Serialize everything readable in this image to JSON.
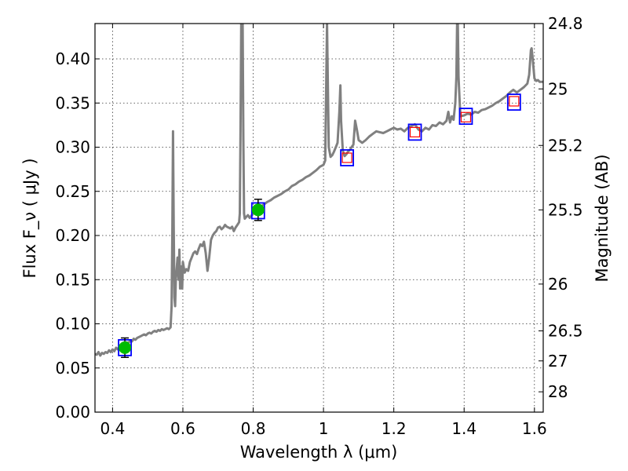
{
  "chart_data": {
    "type": "line",
    "xlabel": "Wavelength  λ (μm)",
    "ylabel": "Flux  F_ν  ( μJy )",
    "right_ylabel": "Magnitude (AB)",
    "xlim": [
      0.35,
      1.625
    ],
    "ylim": [
      0.0,
      0.44
    ],
    "grid": true,
    "x_ticks": [
      {
        "value": 0.4,
        "label": "0.4"
      },
      {
        "value": 0.6,
        "label": "0.6"
      },
      {
        "value": 0.8,
        "label": "0.8"
      },
      {
        "value": 1.0,
        "label": "1"
      },
      {
        "value": 1.2,
        "label": "1.2"
      },
      {
        "value": 1.4,
        "label": "1.4"
      },
      {
        "value": 1.6,
        "label": "1.6"
      }
    ],
    "y_ticks": [
      {
        "value": 0.0,
        "label": "0.00"
      },
      {
        "value": 0.05,
        "label": "0.05"
      },
      {
        "value": 0.1,
        "label": "0.10"
      },
      {
        "value": 0.15,
        "label": "0.15"
      },
      {
        "value": 0.2,
        "label": "0.20"
      },
      {
        "value": 0.25,
        "label": "0.25"
      },
      {
        "value": 0.3,
        "label": "0.30"
      },
      {
        "value": 0.35,
        "label": "0.35"
      },
      {
        "value": 0.4,
        "label": "0.40"
      }
    ],
    "right_ticks": [
      {
        "flux": 0.44,
        "label": "24.8"
      },
      {
        "flux": 0.366,
        "label": "25"
      },
      {
        "flux": 0.302,
        "label": "25.2"
      },
      {
        "flux": 0.229,
        "label": "25.5"
      },
      {
        "flux": 0.145,
        "label": "26"
      },
      {
        "flux": 0.092,
        "label": "26.5"
      },
      {
        "flux": 0.058,
        "label": "27"
      },
      {
        "flux": 0.023,
        "label": "28"
      }
    ],
    "sed_color": "#808080",
    "sed_spectrum": [
      [
        0.35,
        0.066
      ],
      [
        0.355,
        0.065
      ],
      [
        0.36,
        0.068
      ],
      [
        0.365,
        0.064
      ],
      [
        0.37,
        0.067
      ],
      [
        0.375,
        0.066
      ],
      [
        0.38,
        0.068
      ],
      [
        0.385,
        0.067
      ],
      [
        0.39,
        0.07
      ],
      [
        0.395,
        0.068
      ],
      [
        0.4,
        0.071
      ],
      [
        0.405,
        0.069
      ],
      [
        0.41,
        0.073
      ],
      [
        0.415,
        0.071
      ],
      [
        0.42,
        0.074
      ],
      [
        0.425,
        0.073
      ],
      [
        0.43,
        0.077
      ],
      [
        0.435,
        0.075
      ],
      [
        0.44,
        0.079
      ],
      [
        0.445,
        0.078
      ],
      [
        0.45,
        0.081
      ],
      [
        0.455,
        0.08
      ],
      [
        0.46,
        0.083
      ],
      [
        0.465,
        0.082
      ],
      [
        0.47,
        0.084
      ],
      [
        0.475,
        0.085
      ],
      [
        0.48,
        0.086
      ],
      [
        0.485,
        0.087
      ],
      [
        0.49,
        0.088
      ],
      [
        0.495,
        0.087
      ],
      [
        0.5,
        0.089
      ],
      [
        0.505,
        0.09
      ],
      [
        0.51,
        0.089
      ],
      [
        0.515,
        0.091
      ],
      [
        0.52,
        0.092
      ],
      [
        0.525,
        0.091
      ],
      [
        0.53,
        0.093
      ],
      [
        0.535,
        0.092
      ],
      [
        0.54,
        0.094
      ],
      [
        0.545,
        0.093
      ],
      [
        0.55,
        0.094
      ],
      [
        0.555,
        0.095
      ],
      [
        0.56,
        0.094
      ],
      [
        0.565,
        0.096
      ],
      [
        0.568,
        0.12
      ],
      [
        0.57,
        0.2
      ],
      [
        0.572,
        0.318
      ],
      [
        0.574,
        0.21
      ],
      [
        0.576,
        0.13
      ],
      [
        0.578,
        0.12
      ],
      [
        0.58,
        0.15
      ],
      [
        0.585,
        0.175
      ],
      [
        0.588,
        0.15
      ],
      [
        0.59,
        0.184
      ],
      [
        0.592,
        0.14
      ],
      [
        0.595,
        0.165
      ],
      [
        0.598,
        0.14
      ],
      [
        0.6,
        0.17
      ],
      [
        0.605,
        0.158
      ],
      [
        0.61,
        0.162
      ],
      [
        0.615,
        0.16
      ],
      [
        0.62,
        0.17
      ],
      [
        0.625,
        0.175
      ],
      [
        0.63,
        0.18
      ],
      [
        0.635,
        0.182
      ],
      [
        0.64,
        0.179
      ],
      [
        0.645,
        0.185
      ],
      [
        0.65,
        0.19
      ],
      [
        0.655,
        0.188
      ],
      [
        0.66,
        0.193
      ],
      [
        0.665,
        0.18
      ],
      [
        0.67,
        0.16
      ],
      [
        0.675,
        0.175
      ],
      [
        0.68,
        0.195
      ],
      [
        0.685,
        0.2
      ],
      [
        0.69,
        0.203
      ],
      [
        0.695,
        0.205
      ],
      [
        0.7,
        0.209
      ],
      [
        0.705,
        0.21
      ],
      [
        0.71,
        0.207
      ],
      [
        0.715,
        0.209
      ],
      [
        0.72,
        0.212
      ],
      [
        0.725,
        0.21
      ],
      [
        0.73,
        0.209
      ],
      [
        0.735,
        0.208
      ],
      [
        0.74,
        0.21
      ],
      [
        0.745,
        0.205
      ],
      [
        0.75,
        0.209
      ],
      [
        0.755,
        0.212
      ],
      [
        0.76,
        0.215
      ],
      [
        0.762,
        0.225
      ],
      [
        0.764,
        0.32
      ],
      [
        0.766,
        0.44
      ],
      [
        0.77,
        0.44
      ],
      [
        0.772,
        0.31
      ],
      [
        0.774,
        0.225
      ],
      [
        0.776,
        0.219
      ],
      [
        0.78,
        0.221
      ],
      [
        0.785,
        0.223
      ],
      [
        0.79,
        0.22
      ],
      [
        0.8,
        0.225
      ],
      [
        0.81,
        0.228
      ],
      [
        0.82,
        0.232
      ],
      [
        0.83,
        0.235
      ],
      [
        0.84,
        0.238
      ],
      [
        0.85,
        0.24
      ],
      [
        0.86,
        0.243
      ],
      [
        0.87,
        0.245
      ],
      [
        0.88,
        0.247
      ],
      [
        0.89,
        0.25
      ],
      [
        0.9,
        0.252
      ],
      [
        0.91,
        0.256
      ],
      [
        0.92,
        0.258
      ],
      [
        0.93,
        0.261
      ],
      [
        0.94,
        0.263
      ],
      [
        0.95,
        0.266
      ],
      [
        0.96,
        0.268
      ],
      [
        0.97,
        0.271
      ],
      [
        0.98,
        0.274
      ],
      [
        0.99,
        0.278
      ],
      [
        1.0,
        0.28
      ],
      [
        1.005,
        0.285
      ],
      [
        1.008,
        0.38
      ],
      [
        1.01,
        0.44
      ],
      [
        1.012,
        0.38
      ],
      [
        1.015,
        0.3
      ],
      [
        1.02,
        0.289
      ],
      [
        1.025,
        0.291
      ],
      [
        1.03,
        0.295
      ],
      [
        1.035,
        0.3
      ],
      [
        1.04,
        0.305
      ],
      [
        1.045,
        0.34
      ],
      [
        1.048,
        0.37
      ],
      [
        1.05,
        0.33
      ],
      [
        1.055,
        0.296
      ],
      [
        1.06,
        0.29
      ],
      [
        1.065,
        0.292
      ],
      [
        1.07,
        0.295
      ],
      [
        1.075,
        0.297
      ],
      [
        1.08,
        0.3
      ],
      [
        1.085,
        0.303
      ],
      [
        1.09,
        0.33
      ],
      [
        1.095,
        0.32
      ],
      [
        1.1,
        0.308
      ],
      [
        1.11,
        0.305
      ],
      [
        1.12,
        0.308
      ],
      [
        1.13,
        0.312
      ],
      [
        1.14,
        0.315
      ],
      [
        1.15,
        0.318
      ],
      [
        1.16,
        0.317
      ],
      [
        1.17,
        0.316
      ],
      [
        1.18,
        0.318
      ],
      [
        1.19,
        0.32
      ],
      [
        1.2,
        0.322
      ],
      [
        1.21,
        0.32
      ],
      [
        1.22,
        0.321
      ],
      [
        1.23,
        0.318
      ],
      [
        1.24,
        0.322
      ],
      [
        1.25,
        0.324
      ],
      [
        1.26,
        0.326
      ],
      [
        1.27,
        0.32
      ],
      [
        1.28,
        0.318
      ],
      [
        1.29,
        0.322
      ],
      [
        1.3,
        0.32
      ],
      [
        1.31,
        0.325
      ],
      [
        1.32,
        0.324
      ],
      [
        1.33,
        0.328
      ],
      [
        1.34,
        0.326
      ],
      [
        1.35,
        0.33
      ],
      [
        1.355,
        0.34
      ],
      [
        1.36,
        0.328
      ],
      [
        1.365,
        0.335
      ],
      [
        1.37,
        0.331
      ],
      [
        1.375,
        0.35
      ],
      [
        1.378,
        0.38
      ],
      [
        1.38,
        0.44
      ],
      [
        1.382,
        0.44
      ],
      [
        1.384,
        0.38
      ],
      [
        1.388,
        0.345
      ],
      [
        1.39,
        0.335
      ],
      [
        1.4,
        0.336
      ],
      [
        1.41,
        0.338
      ],
      [
        1.42,
        0.337
      ],
      [
        1.43,
        0.34
      ],
      [
        1.44,
        0.339
      ],
      [
        1.45,
        0.342
      ],
      [
        1.46,
        0.343
      ],
      [
        1.47,
        0.345
      ],
      [
        1.48,
        0.347
      ],
      [
        1.49,
        0.35
      ],
      [
        1.5,
        0.352
      ],
      [
        1.51,
        0.355
      ],
      [
        1.52,
        0.358
      ],
      [
        1.53,
        0.362
      ],
      [
        1.54,
        0.365
      ],
      [
        1.55,
        0.362
      ],
      [
        1.56,
        0.365
      ],
      [
        1.57,
        0.368
      ],
      [
        1.58,
        0.372
      ],
      [
        1.585,
        0.382
      ],
      [
        1.59,
        0.41
      ],
      [
        1.592,
        0.412
      ],
      [
        1.595,
        0.4
      ],
      [
        1.6,
        0.378
      ],
      [
        1.605,
        0.375
      ],
      [
        1.61,
        0.376
      ],
      [
        1.615,
        0.374
      ],
      [
        1.625,
        0.374
      ]
    ],
    "model_points": [
      {
        "x": 0.435,
        "y": 0.073
      },
      {
        "x": 0.814,
        "y": 0.228
      },
      {
        "x": 1.067,
        "y": 0.288
      },
      {
        "x": 1.26,
        "y": 0.317
      },
      {
        "x": 1.405,
        "y": 0.335
      },
      {
        "x": 1.542,
        "y": 0.351
      }
    ],
    "model_color": "#0000ff",
    "detections": [
      {
        "x": 0.435,
        "y": 0.073,
        "err": 0.011
      },
      {
        "x": 0.814,
        "y": 0.229,
        "err": 0.012
      }
    ],
    "detection_color": "#00bb00",
    "upper_limits": [
      {
        "x": 1.067,
        "y": 0.288
      },
      {
        "x": 1.26,
        "y": 0.317
      },
      {
        "x": 1.405,
        "y": 0.334
      },
      {
        "x": 1.542,
        "y": 0.352
      }
    ],
    "upper_limit_color": "#ff0000"
  }
}
